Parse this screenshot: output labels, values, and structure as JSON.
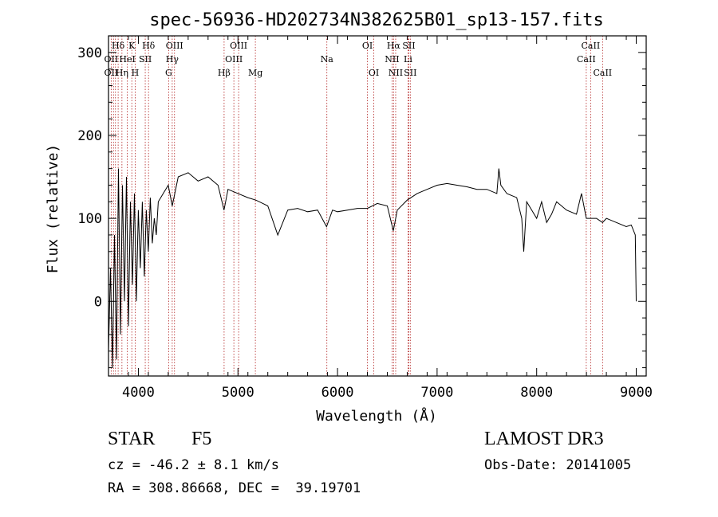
{
  "chart_data": {
    "type": "line",
    "title": "spec-56936-HD202734N382625B01_sp13-157.fits",
    "xlabel": "Wavelength (Å)",
    "ylabel": "Flux (relative)",
    "xlim": [
      3700,
      9100
    ],
    "ylim": [
      -90,
      320
    ],
    "xticks": [
      4000,
      5000,
      6000,
      7000,
      8000,
      9000
    ],
    "yticks": [
      0,
      100,
      200,
      300
    ],
    "grid": false,
    "series": [
      {
        "x": [
          3700,
          3720,
          3740,
          3760,
          3780,
          3800,
          3820,
          3840,
          3860,
          3880,
          3900,
          3920,
          3940,
          3960,
          3980,
          4000,
          4020,
          4040,
          4060,
          4080,
          4100,
          4120,
          4140,
          4160,
          4180,
          4200,
          4250,
          4300,
          4340,
          4400,
          4500,
          4600,
          4700,
          4800,
          4860,
          4900,
          5000,
          5100,
          5180,
          5250,
          5300,
          5400,
          5500,
          5600,
          5700,
          5800,
          5890,
          5950,
          6000,
          6100,
          6200,
          6300,
          6400,
          6500,
          6560,
          6600,
          6700,
          6800,
          6900,
          7000,
          7100,
          7200,
          7300,
          7400,
          7500,
          7600,
          7620,
          7640,
          7700,
          7800,
          7850,
          7870,
          7900,
          7950,
          8000,
          8050,
          8100,
          8150,
          8200,
          8300,
          8400,
          8450,
          8498,
          8542,
          8600,
          8662,
          8700,
          8800,
          8900,
          8950,
          8990,
          9000
        ],
        "y": [
          -60,
          40,
          -80,
          80,
          -70,
          160,
          -40,
          140,
          0,
          150,
          -30,
          120,
          20,
          130,
          0,
          110,
          40,
          120,
          30,
          110,
          60,
          125,
          70,
          100,
          80,
          120,
          130,
          140,
          115,
          150,
          155,
          145,
          150,
          140,
          110,
          135,
          130,
          125,
          122,
          118,
          115,
          80,
          110,
          112,
          108,
          110,
          90,
          110,
          108,
          110,
          112,
          112,
          118,
          115,
          85,
          110,
          122,
          130,
          135,
          140,
          142,
          140,
          138,
          135,
          135,
          130,
          160,
          140,
          130,
          125,
          100,
          60,
          120,
          110,
          100,
          120,
          95,
          105,
          120,
          110,
          105,
          130,
          100,
          100,
          100,
          95,
          100,
          95,
          90,
          92,
          80,
          0
        ]
      }
    ],
    "line_labels": [
      {
        "text": "Hδ",
        "wl": 3797,
        "row": 0
      },
      {
        "text": "OII",
        "wl": 3727,
        "row": 1
      },
      {
        "text": "OII",
        "wl": 3727,
        "row": 2
      },
      {
        "text": "Hη",
        "wl": 3835,
        "row": 2
      },
      {
        "text": "K",
        "wl": 3934,
        "row": 0
      },
      {
        "text": "HeI",
        "wl": 3889,
        "row": 1
      },
      {
        "text": "SII",
        "wl": 4069,
        "row": 1
      },
      {
        "text": "H",
        "wl": 3968,
        "row": 2
      },
      {
        "text": "Hδ",
        "wl": 4102,
        "row": 0
      },
      {
        "text": "OIII",
        "wl": 4363,
        "row": 0
      },
      {
        "text": "Hγ",
        "wl": 4340,
        "row": 1
      },
      {
        "text": "G",
        "wl": 4304,
        "row": 2
      },
      {
        "text": "OIII",
        "wl": 5007,
        "row": 0
      },
      {
        "text": "OIII",
        "wl": 4959,
        "row": 1
      },
      {
        "text": "Hβ",
        "wl": 4861,
        "row": 2
      },
      {
        "text": "Mg",
        "wl": 5175,
        "row": 2
      },
      {
        "text": "Na",
        "wl": 5893,
        "row": 1
      },
      {
        "text": "OI",
        "wl": 6300,
        "row": 0
      },
      {
        "text": "OI",
        "wl": 6364,
        "row": 2
      },
      {
        "text": "Hα",
        "wl": 6563,
        "row": 0
      },
      {
        "text": "SII",
        "wl": 6716,
        "row": 0
      },
      {
        "text": "NII",
        "wl": 6548,
        "row": 1
      },
      {
        "text": "Li",
        "wl": 6708,
        "row": 1
      },
      {
        "text": "NII",
        "wl": 6584,
        "row": 2
      },
      {
        "text": "SII",
        "wl": 6731,
        "row": 2
      },
      {
        "text": "CaII",
        "wl": 8542,
        "row": 0
      },
      {
        "text": "CaII",
        "wl": 8498,
        "row": 1
      },
      {
        "text": "CaII",
        "wl": 8662,
        "row": 2
      }
    ],
    "line_markers": [
      3727,
      3750,
      3770,
      3797,
      3835,
      3889,
      3934,
      3968,
      4069,
      4102,
      4304,
      4340,
      4363,
      4861,
      4959,
      5007,
      5175,
      5893,
      6300,
      6364,
      6548,
      6563,
      6584,
      6708,
      6716,
      6731,
      8498,
      8542,
      8662
    ]
  },
  "footer": {
    "object_class": "STAR",
    "subclass": "F5",
    "survey": "LAMOST DR3",
    "cz": "cz = -46.2 ± 8.1 km/s",
    "obs_date": "Obs-Date: 20141005",
    "coords": "RA = 308.86668, DEC =  39.19701"
  },
  "colors": {
    "spectrum": "#000000",
    "marker": "#b22222"
  }
}
